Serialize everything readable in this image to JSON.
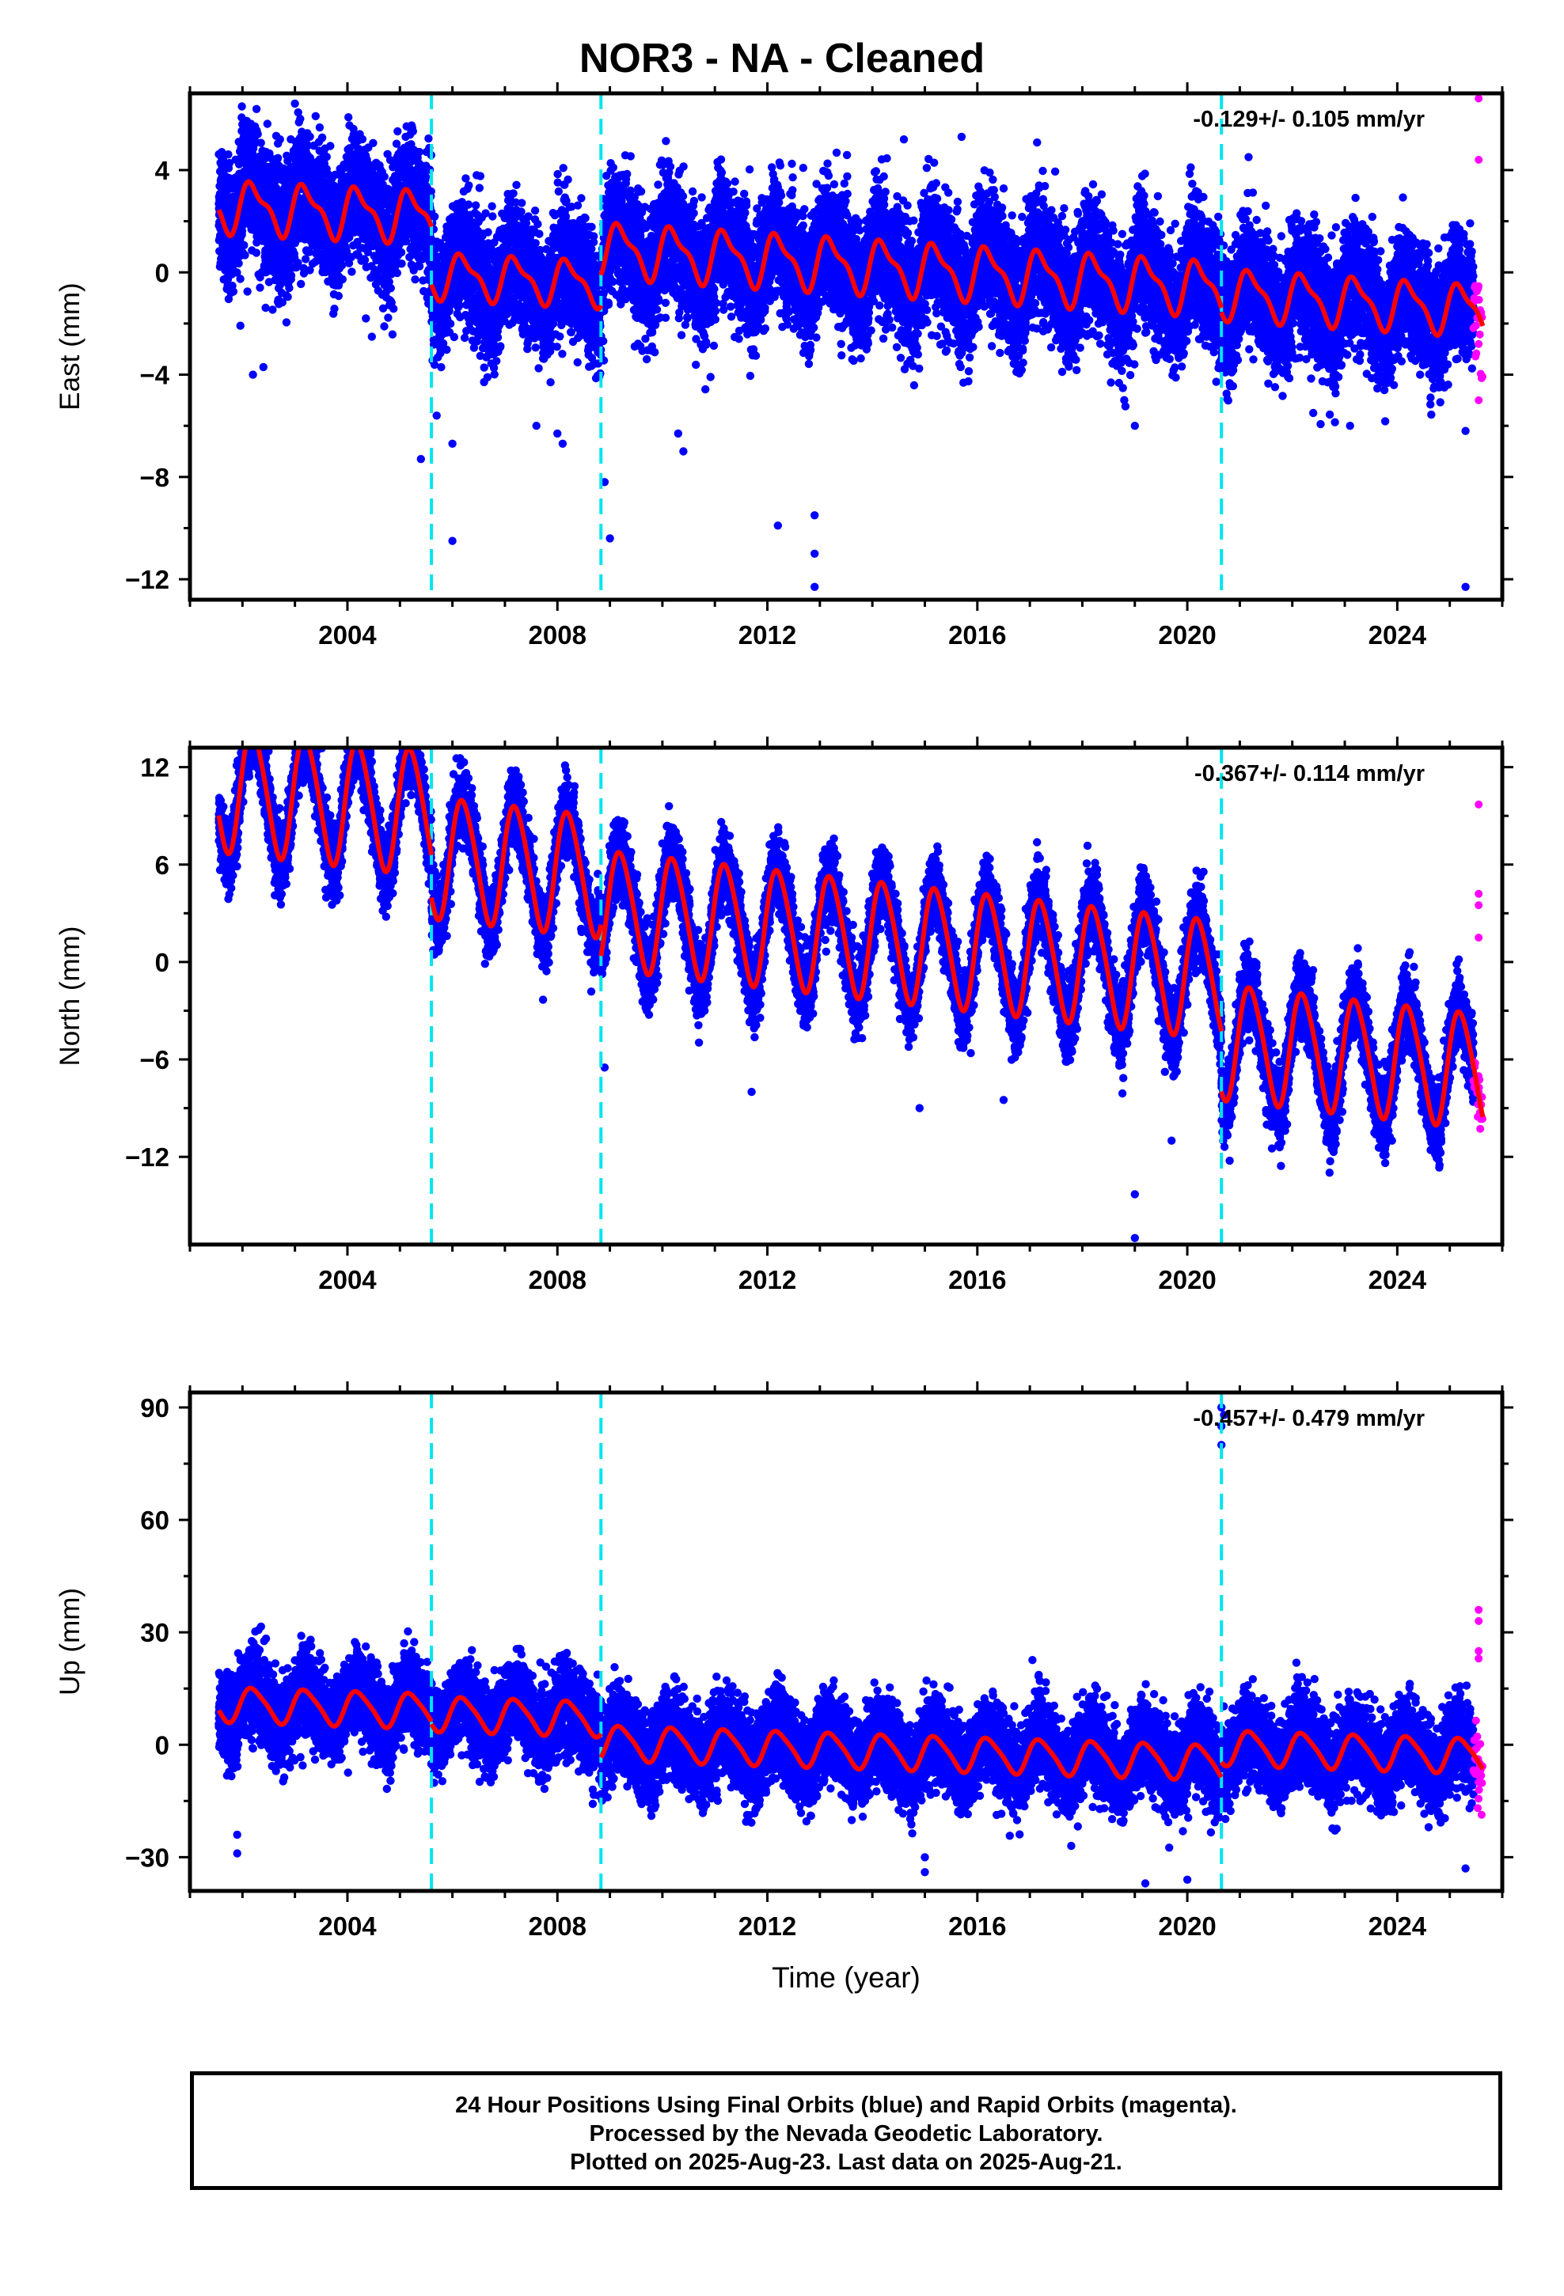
{
  "title": "NOR3  - NA - Cleaned",
  "footer": {
    "line1": "24 Hour Positions Using Final Orbits (blue) and Rapid Orbits (magenta).",
    "line2": "Processed by the Nevada Geodetic Laboratory.",
    "line3": "Plotted on 2025-Aug-23. Last data on 2025-Aug-21."
  },
  "colors": {
    "final_points": "#0000ff",
    "rapid_points": "#ff00ff",
    "model_fit": "#ff0000",
    "equipment_change": "#00e5ee",
    "axis": "#000000"
  },
  "chart_data": [
    {
      "type": "scatter",
      "component": "east",
      "ylabel": "East (mm)",
      "xlabel": "",
      "rate_label": "-0.129+/- 0.105 mm/yr",
      "xlim": [
        2001.0,
        2026.0
      ],
      "ylim": [
        -12.8,
        7.0
      ],
      "xticks": [
        2004,
        2008,
        2012,
        2016,
        2020,
        2024
      ],
      "yticks": [
        4,
        0,
        -4,
        -8,
        -12
      ],
      "ytick_labels": [
        "4",
        "0",
        "−4",
        "−8",
        "−12"
      ],
      "data_start": 2001.55,
      "data_end": 2025.63,
      "rapid_start": 2025.45,
      "breaks": [
        2005.6,
        2008.83,
        2020.65
      ],
      "model_segments": [
        {
          "from": 2001.55,
          "to": 2005.6,
          "offset": 1.4,
          "amplitude": 0.9,
          "semiannual": 0.35,
          "trend": -0.1
        },
        {
          "from": 2005.6,
          "to": 2008.83,
          "offset": -0.9,
          "amplitude": 0.8,
          "semiannual": 0.3,
          "trend": -0.1
        },
        {
          "from": 2008.83,
          "to": 2020.65,
          "offset": 0.3,
          "amplitude": 0.95,
          "semiannual": 0.35,
          "trend": -0.13
        },
        {
          "from": 2020.65,
          "to": 2025.63,
          "offset": 0.1,
          "amplitude": 0.9,
          "semiannual": 0.3,
          "trend": -0.13
        }
      ],
      "scatter_sigma": 1.2,
      "outliers": [
        [
          2002.2,
          -4.0
        ],
        [
          2005.4,
          -7.3
        ],
        [
          2005.7,
          -5.6
        ],
        [
          2006.0,
          -10.5
        ],
        [
          2006.0,
          -6.7
        ],
        [
          2007.6,
          -6.0
        ],
        [
          2008.0,
          -6.3
        ],
        [
          2008.1,
          -6.7
        ],
        [
          2008.9,
          -8.2
        ],
        [
          2009.0,
          -10.4
        ],
        [
          2010.3,
          -6.3
        ],
        [
          2010.4,
          -7.0
        ],
        [
          2012.2,
          -9.9
        ],
        [
          2012.9,
          -12.3
        ],
        [
          2012.9,
          -11.0
        ],
        [
          2012.9,
          -9.5
        ],
        [
          2019.0,
          -6.0
        ],
        [
          2022.4,
          -5.5
        ],
        [
          2023.1,
          -6.0
        ],
        [
          2025.3,
          -6.2
        ],
        [
          2025.3,
          -12.3
        ],
        [
          2003.0,
          6.6
        ],
        [
          2003.1,
          6.0
        ],
        [
          2014.6,
          5.2
        ],
        [
          2015.7,
          5.3
        ],
        [
          2002.4,
          -3.7
        ]
      ],
      "rapid_outliers": [
        [
          2025.55,
          6.8
        ],
        [
          2025.55,
          4.4
        ],
        [
          2025.55,
          -2.8
        ],
        [
          2025.55,
          -5.0
        ],
        [
          2025.55,
          -1.8
        ]
      ]
    },
    {
      "type": "scatter",
      "component": "north",
      "ylabel": "North (mm)",
      "xlabel": "",
      "rate_label": "-0.367+/- 0.114 mm/yr",
      "xlim": [
        2001.0,
        2026.0
      ],
      "ylim": [
        -17.4,
        13.2
      ],
      "xticks": [
        2004,
        2008,
        2012,
        2016,
        2020,
        2024
      ],
      "yticks": [
        12,
        6,
        0,
        -6,
        -12
      ],
      "ytick_labels": [
        "12",
        "6",
        "0",
        "−6",
        "−12"
      ],
      "data_start": 2001.55,
      "data_end": 2025.63,
      "rapid_start": 2025.45,
      "breaks": [
        2005.6,
        2008.83,
        2020.65
      ],
      "model_segments": [
        {
          "from": 2001.55,
          "to": 2005.6,
          "offset": 6.3,
          "amplitude": 3.8,
          "semiannual": 0.4,
          "trend": -0.37
        },
        {
          "from": 2005.6,
          "to": 2008.83,
          "offset": 3.6,
          "amplitude": 3.7,
          "semiannual": 0.4,
          "trend": -0.37
        },
        {
          "from": 2008.83,
          "to": 2020.65,
          "offset": 1.6,
          "amplitude": 3.6,
          "semiannual": 0.4,
          "trend": -0.37
        },
        {
          "from": 2020.65,
          "to": 2025.63,
          "offset": -2.2,
          "amplitude": 3.5,
          "semiannual": 0.4,
          "trend": -0.37
        }
      ],
      "scatter_sigma": 1.1,
      "outliers": [
        [
          2014.9,
          -9.0
        ],
        [
          2019.0,
          -14.3
        ],
        [
          2019.0,
          -17.0
        ],
        [
          2019.7,
          -11.0
        ],
        [
          2023.9,
          -11.0
        ],
        [
          2021.9,
          -10.0
        ],
        [
          2011.7,
          -8.0
        ],
        [
          2016.5,
          -8.5
        ],
        [
          2008.9,
          -6.5
        ],
        [
          2004.4,
          12.5
        ]
      ],
      "rapid_outliers": [
        [
          2025.55,
          9.7
        ],
        [
          2025.55,
          4.2
        ],
        [
          2025.55,
          3.5
        ],
        [
          2025.55,
          -8.0
        ],
        [
          2025.55,
          1.5
        ]
      ]
    },
    {
      "type": "scatter",
      "component": "up",
      "ylabel": "Up (mm)",
      "xlabel": "Time (year)",
      "rate_label": "-0.457+/- 0.479 mm/yr",
      "xlim": [
        2001.0,
        2026.0
      ],
      "ylim": [
        -39.0,
        94.0
      ],
      "xticks": [
        2004,
        2008,
        2012,
        2016,
        2020,
        2024
      ],
      "yticks": [
        90,
        60,
        30,
        0,
        -30
      ],
      "ytick_labels": [
        "90",
        "60",
        "30",
        "0",
        "−30"
      ],
      "data_start": 2001.55,
      "data_end": 2025.63,
      "rapid_start": 2025.45,
      "breaks": [
        2005.6,
        2008.83,
        2020.65
      ],
      "model_segments": [
        {
          "from": 2001.55,
          "to": 2005.6,
          "offset": 5.5,
          "amplitude": 4.5,
          "semiannual": 0.8,
          "trend": -0.45
        },
        {
          "from": 2005.6,
          "to": 2008.83,
          "offset": 4.8,
          "amplitude": 4.5,
          "semiannual": 0.8,
          "trend": -0.45
        },
        {
          "from": 2008.83,
          "to": 2020.65,
          "offset": -1.5,
          "amplitude": 4.5,
          "semiannual": 0.8,
          "trend": -0.45
        },
        {
          "from": 2020.65,
          "to": 2025.63,
          "offset": 2.5,
          "amplitude": 4.5,
          "semiannual": 0.8,
          "trend": -0.45
        }
      ],
      "scatter_sigma": 5.5,
      "outliers": [
        [
          2020.65,
          90.0
        ],
        [
          2020.65,
          85.0
        ],
        [
          2020.65,
          80.0
        ],
        [
          2020.7,
          88.0
        ],
        [
          2001.9,
          -29.0
        ],
        [
          2001.9,
          -24.0
        ],
        [
          2015.0,
          -34.0
        ],
        [
          2015.0,
          -30.0
        ],
        [
          2019.2,
          -37.0
        ],
        [
          2020.0,
          -36.0
        ],
        [
          2025.3,
          -33.0
        ],
        [
          2003.3,
          28.0
        ]
      ],
      "rapid_outliers": [
        [
          2025.55,
          36.0
        ],
        [
          2025.55,
          33.0
        ],
        [
          2025.55,
          25.0
        ],
        [
          2025.55,
          23.0
        ],
        [
          2025.55,
          -10.0
        ],
        [
          2025.55,
          -8.0
        ]
      ]
    }
  ]
}
